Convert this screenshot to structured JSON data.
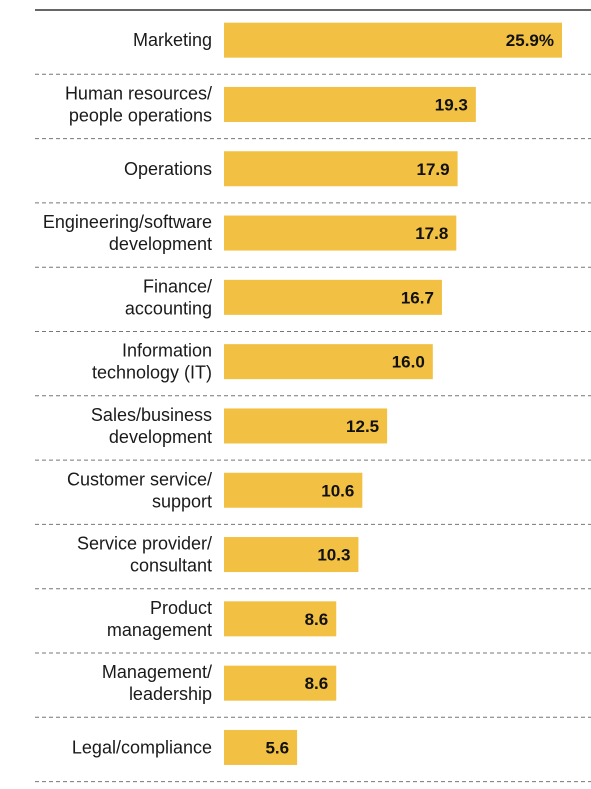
{
  "chart_data": {
    "type": "bar",
    "orientation": "horizontal",
    "categories": [
      [
        "Marketing"
      ],
      [
        "Human resources/",
        "people operations"
      ],
      [
        "Operations"
      ],
      [
        "Engineering/software",
        "development"
      ],
      [
        "Finance/",
        "accounting"
      ],
      [
        "Information",
        "technology (IT)"
      ],
      [
        "Sales/business",
        "development"
      ],
      [
        "Customer service/",
        "support"
      ],
      [
        "Service provider/",
        "consultant"
      ],
      [
        "Product",
        "management"
      ],
      [
        "Management/",
        "leadership"
      ],
      [
        "Legal/compliance"
      ]
    ],
    "values": [
      25.9,
      19.3,
      17.9,
      17.8,
      16.7,
      16.0,
      12.5,
      10.6,
      10.3,
      8.6,
      8.6,
      5.6
    ],
    "value_labels": [
      "25.9%",
      "19.3",
      "17.9",
      "17.8",
      "16.7",
      "16.0",
      "12.5",
      "10.6",
      "10.3",
      "8.6",
      "8.6",
      "5.6"
    ],
    "xlim": [
      0,
      25.9
    ],
    "bar_color": "#f2c043",
    "separator_color": "#777777",
    "top_rule_color": "#333333",
    "grid": false,
    "legend": "none"
  }
}
